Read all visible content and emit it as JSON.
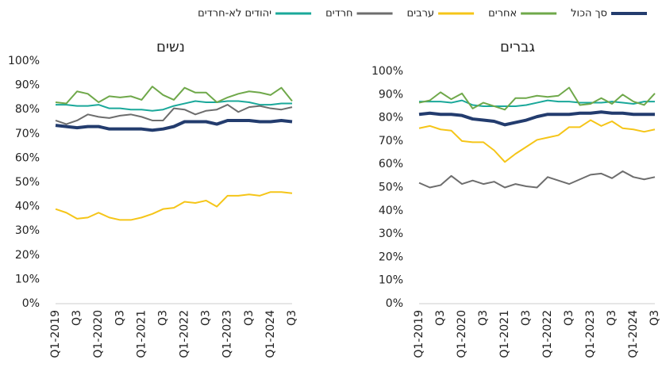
{
  "chart_data": [
    {
      "type": "line",
      "title": "נשים",
      "categories": [
        "Q1-2019",
        null,
        "Q3",
        null,
        "Q1-2020",
        null,
        "Q3",
        null,
        "Q1-2021",
        null,
        "Q3",
        null,
        "Q1-2022",
        null,
        "Q3",
        null,
        "Q1-2023",
        null,
        "Q3",
        null,
        "Q1-2024",
        null,
        "Q3"
      ],
      "ylim": [
        0,
        100
      ],
      "yticks": [
        {
          "value": 0,
          "label": "0%"
        },
        {
          "value": 10,
          "label": "10%"
        },
        {
          "value": 20,
          "label": "20%"
        },
        {
          "value": 30,
          "label": "30%"
        },
        {
          "value": 40,
          "label": "40%"
        },
        {
          "value": 50,
          "label": "50%"
        },
        {
          "value": 60,
          "label": "60%"
        },
        {
          "value": 70,
          "label": "70%"
        },
        {
          "value": 80,
          "label": "80%"
        },
        {
          "value": 90,
          "label": "90%"
        },
        {
          "value": 100,
          "label": "100%"
        }
      ],
      "grid": false,
      "series": [
        {
          "name": "סך הכול",
          "color": "#233c6e",
          "values": [
            73.5,
            73,
            72.5,
            73,
            73,
            72,
            72,
            72,
            72,
            71.5,
            72,
            73,
            75,
            75,
            75,
            74,
            75.5,
            75.5,
            75.5,
            75,
            75,
            75.5,
            75
          ]
        },
        {
          "name": "אחרים",
          "color": "#6fa84a",
          "values": [
            83,
            82.5,
            87.5,
            86.5,
            83,
            85.5,
            85,
            85.5,
            84,
            89.5,
            86,
            84,
            89,
            87,
            87,
            83,
            85,
            86.5,
            87.5,
            87,
            86,
            89,
            83.5
          ]
        },
        {
          "name": "ערבים",
          "color": "#f5c518",
          "values": [
            39,
            37.5,
            35,
            35.5,
            37.5,
            35.5,
            34.5,
            34.5,
            35.5,
            37,
            39,
            39.5,
            42,
            41.5,
            42.5,
            40,
            44.5,
            44.5,
            45,
            44.5,
            46,
            46,
            45.5
          ]
        },
        {
          "name": "חרדים",
          "color": "#6d6d6d",
          "values": [
            75.5,
            74,
            75.5,
            78,
            77,
            76.5,
            77.5,
            78,
            77,
            75.5,
            75.5,
            80.5,
            80,
            78,
            79.5,
            80,
            82,
            79,
            81,
            81.5,
            80.5,
            80,
            81
          ]
        },
        {
          "name": "יהודים לא-חרדים",
          "color": "#1aa89a",
          "values": [
            82,
            82,
            81.5,
            81.5,
            82,
            80.5,
            80.5,
            80,
            80,
            79.5,
            80,
            81.5,
            82.5,
            83.5,
            83,
            83,
            83.5,
            83.5,
            83,
            82,
            82,
            82.5,
            82.5
          ]
        }
      ]
    },
    {
      "type": "line",
      "title": "גברים",
      "categories": [
        "Q1-2019",
        null,
        "Q3",
        null,
        "Q1-2020",
        null,
        "Q3",
        null,
        "Q1-2021",
        null,
        "Q3",
        null,
        "Q1-2022",
        null,
        "Q3",
        null,
        "Q1-2023",
        null,
        "Q3",
        null,
        "Q1-2024",
        null,
        "Q3"
      ],
      "ylim": [
        0,
        100
      ],
      "yticks": [
        {
          "value": 0,
          "label": "0%"
        },
        {
          "value": 10,
          "label": "10%"
        },
        {
          "value": 20,
          "label": "20%"
        },
        {
          "value": 30,
          "label": "30%"
        },
        {
          "value": 40,
          "label": "40%"
        },
        {
          "value": 50,
          "label": "50%"
        },
        {
          "value": 60,
          "label": "60%"
        },
        {
          "value": 70,
          "label": "70%"
        },
        {
          "value": 80,
          "label": "80%"
        },
        {
          "value": 90,
          "label": "90%"
        },
        {
          "value": 100,
          "label": "100%"
        }
      ],
      "grid": false,
      "series": [
        {
          "color": "#233c6e",
          "values": [
            81.5,
            82,
            81.5,
            81.5,
            81,
            79.5,
            79,
            78.5,
            77,
            78,
            79,
            80.5,
            81.5,
            81.5,
            81.5,
            82,
            82,
            82.5,
            82,
            82,
            81.5,
            81.5,
            81.5
          ]
        },
        {
          "color": "#6fa84a",
          "values": [
            86.5,
            87.5,
            91,
            88,
            90.5,
            84,
            86.5,
            85,
            83.5,
            88.5,
            88.5,
            89.5,
            89,
            89.5,
            93,
            85.5,
            86,
            88.5,
            86,
            90,
            87,
            85.5,
            90.5
          ]
        },
        {
          "color": "#f5c518",
          "values": [
            75.5,
            76.5,
            75,
            74.5,
            70,
            69.5,
            69.5,
            66,
            61,
            64.5,
            67.5,
            70.5,
            71.5,
            72.5,
            76,
            76,
            79,
            76.5,
            78.5,
            75.5,
            75,
            74,
            75
          ]
        },
        {
          "color": "#6d6d6d",
          "values": [
            52,
            50,
            51,
            55,
            51.5,
            53,
            51.5,
            52.5,
            50,
            51.5,
            50.5,
            50,
            54.5,
            53,
            51.5,
            53.5,
            55.5,
            56,
            54,
            57,
            54.5,
            53.5,
            54.5
          ]
        },
        {
          "color": "#1aa89a",
          "values": [
            87,
            87,
            87,
            86.5,
            87.5,
            85.5,
            85,
            85,
            85,
            85,
            85.5,
            86.5,
            87.5,
            87,
            87,
            86.5,
            86.5,
            86.5,
            87,
            86.5,
            86,
            87,
            87
          ]
        }
      ]
    }
  ]
}
